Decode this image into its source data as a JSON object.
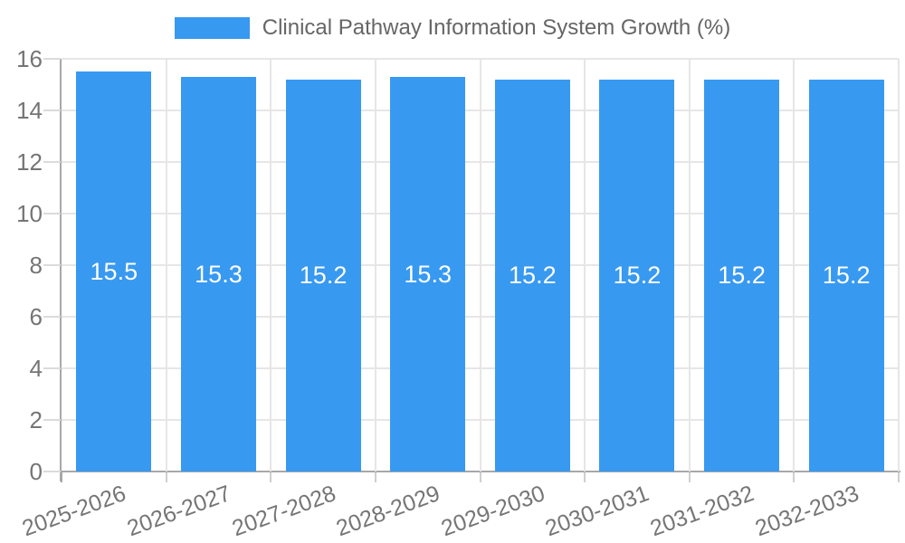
{
  "chart_data": {
    "type": "bar",
    "title": "Clinical Pathway Information System Growth (%)",
    "categories": [
      "2025-2026",
      "2026-2027",
      "2027-2028",
      "2028-2029",
      "2029-2030",
      "2030-2031",
      "2031-2032",
      "2032-2033"
    ],
    "values": [
      15.5,
      15.3,
      15.2,
      15.3,
      15.2,
      15.2,
      15.2,
      15.2
    ],
    "value_labels": [
      "15.5",
      "15.3",
      "15.2",
      "15.3",
      "15.2",
      "15.2",
      "15.2",
      "15.2"
    ],
    "xlabel": "",
    "ylabel": "",
    "ylim": [
      0,
      16
    ],
    "yticks": [
      0,
      2,
      4,
      6,
      8,
      10,
      12,
      14,
      16
    ],
    "legend_position": "top",
    "grid": true,
    "colors": {
      "bar": "#3899F0",
      "value_label": "#FFFFFF",
      "tick_label": "#757575",
      "legend_label": "#666666",
      "grid": "#E6E6E6",
      "axis": "#A8A8A8",
      "background": "#FFFFFF"
    }
  }
}
